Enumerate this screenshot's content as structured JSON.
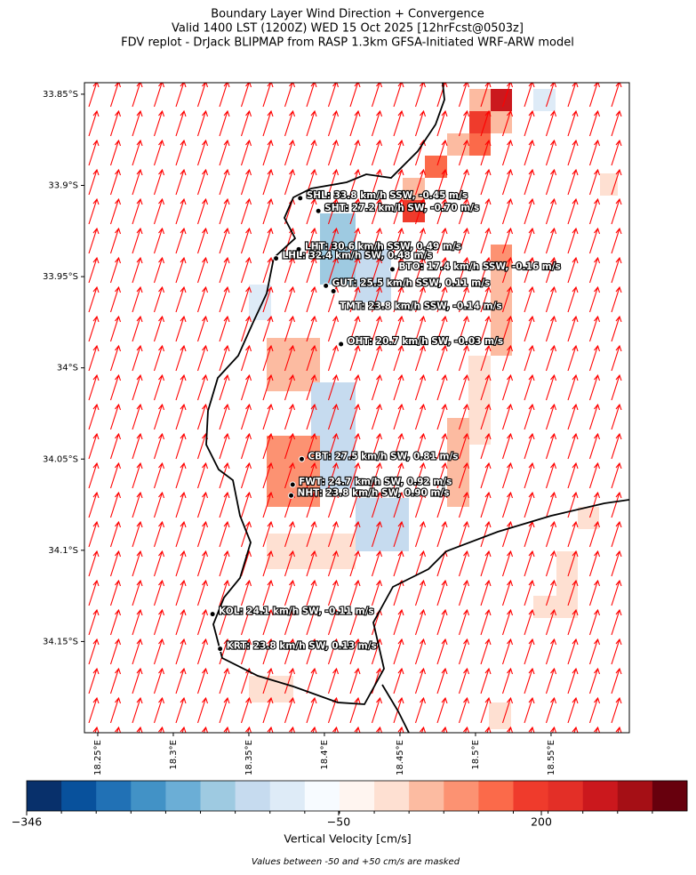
{
  "chart_data": {
    "type": "map",
    "title": [
      "Boundary Layer Wind Direction + Convergence",
      "Valid 1400 LST (1200Z) WED 15 Oct 2025 [12hrFcst@0503z]",
      "FDV replot - DrJack BLIPMAP from RASP 1.3km GFSA-Initiated WRF-ARW model"
    ],
    "xlim": [
      18.2412,
      18.6018
    ],
    "ylim": [
      -34.2,
      -33.8437
    ],
    "xticks": [
      {
        "value": 18.25,
        "label": "18.25°E"
      },
      {
        "value": 18.3,
        "label": "18.3°E"
      },
      {
        "value": 18.35,
        "label": "18.35°E"
      },
      {
        "value": 18.4,
        "label": "18.4°E"
      },
      {
        "value": 18.45,
        "label": "18.45°E"
      },
      {
        "value": 18.5,
        "label": "18.5°E"
      },
      {
        "value": 18.55,
        "label": "18.55°E"
      }
    ],
    "yticks": [
      {
        "value": -33.85,
        "label": "33.85°S"
      },
      {
        "value": -33.9,
        "label": "33.9°S"
      },
      {
        "value": -33.95,
        "label": "33.95°S"
      },
      {
        "value": -34.0,
        "label": "34°S"
      },
      {
        "value": -34.05,
        "label": "34.05°S"
      },
      {
        "value": -34.1,
        "label": "34.1°S"
      },
      {
        "value": -34.15,
        "label": "34.15°S"
      }
    ],
    "stations": [
      {
        "label": "SHL: 33.8 km/h SSW, -0.45 m/s",
        "lon": 18.384,
        "lat": -33.907
      },
      {
        "label": "SHT: 27.2 km/h SW, -0.70 m/s",
        "lon": 18.396,
        "lat": -33.914
      },
      {
        "label": "LHT: 30.6 km/h SSW, 0.49 m/s",
        "lon": 18.383,
        "lat": -33.935
      },
      {
        "label": "LHL: 32.4 km/h SW, 0.48 m/s",
        "lon": 18.368,
        "lat": -33.94
      },
      {
        "label": "BTO: 17.4 km/h SSW, -0.16 m/s",
        "lon": 18.445,
        "lat": -33.946
      },
      {
        "label": "GUT: 25.5 km/h SSW, 0.11 m/s",
        "lon": 18.401,
        "lat": -33.955
      },
      {
        "label": "TMT: 23.8 km/h SSW, -0.14 m/s",
        "lon": 18.406,
        "lat": -33.958
      },
      {
        "label": "OHT: 20.7 km/h SW, -0.03 m/s",
        "lon": 18.411,
        "lat": -33.987
      },
      {
        "label": "CBT: 27.5 km/h SW, 0.81 m/s",
        "lon": 18.385,
        "lat": -34.05
      },
      {
        "label": "FWT: 24.7 km/h SW, 0.92 m/s",
        "lon": 18.379,
        "lat": -34.064
      },
      {
        "label": "NHT: 23.8 km/h SW, 0.90 m/s",
        "lon": 18.378,
        "lat": -34.07
      },
      {
        "label": "KOL: 24.1 km/h SW, -0.11 m/s",
        "lon": 18.326,
        "lat": -34.135
      },
      {
        "label": "KRT: 23.8 km/h SW, 0.13 m/s",
        "lon": 18.331,
        "lat": -34.154
      }
    ],
    "colorbar": {
      "colors": [
        "#08306b",
        "#08519c",
        "#2171b5",
        "#4292c6",
        "#6baed6",
        "#9ecae1",
        "#c6dbef",
        "#deebf7",
        "#f7fbff",
        "#fff5f0",
        "#fee0d2",
        "#fcbba1",
        "#fc9272",
        "#fb6a4a",
        "#ef3b2c",
        "#e32f27",
        "#cb181d",
        "#a50f15",
        "#67000d"
      ],
      "ticks": [
        {
          "value": -346,
          "label": "−346"
        },
        {
          "value": -50,
          "label": "−50"
        },
        200
      ],
      "label": "Vertical Velocity [cm/s]"
    },
    "note": "Values between -50 and +50 cm/s are masked"
  }
}
